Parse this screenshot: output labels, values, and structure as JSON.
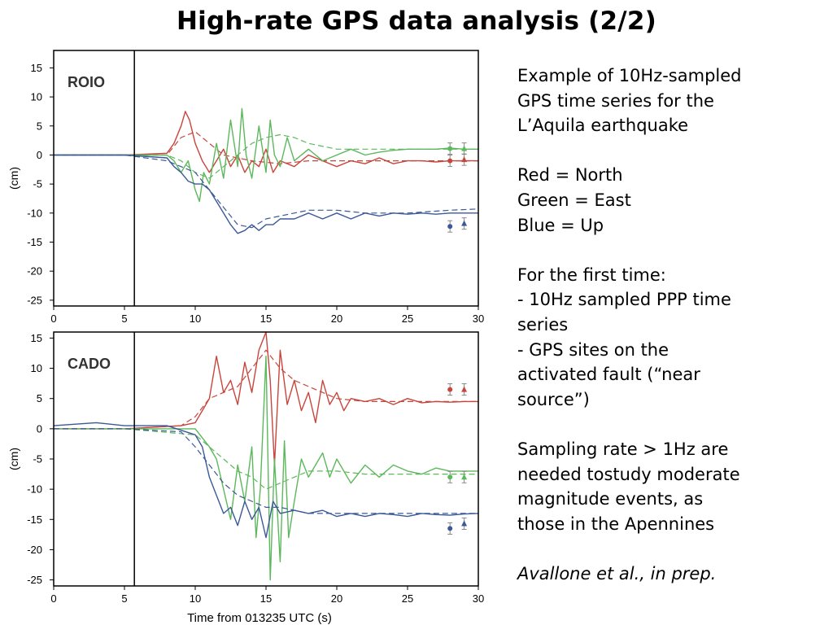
{
  "slide": {
    "title": "High-rate GPS data analysis (2/2)",
    "intro": [
      "Example of 10Hz-sampled",
      "GPS time series for the",
      "L’Aquila earthquake"
    ],
    "legend_lines": [
      "Red = North",
      "Green = East",
      "Blue = Up"
    ],
    "first_time": [
      "For the first time:",
      "- 10Hz sampled PPP time",
      "series",
      "- GPS sites on the",
      "activated fault (“near",
      "source”)"
    ],
    "sampling": [
      "Sampling rate > 1Hz are",
      "needed tostudy moderate",
      "magnitude events, as",
      "those in the Apennines"
    ],
    "citation": "Avallone et al., in prep."
  },
  "colors": {
    "north": "#c8453c",
    "east": "#5cb85c",
    "up": "#3b5998",
    "axis": "#000000"
  },
  "chart_data": [
    {
      "type": "line",
      "station": "ROIO",
      "xlabel": "",
      "ylabel": "(cm)",
      "xlim": [
        0,
        30
      ],
      "ylim": [
        -26,
        18
      ],
      "xticks": [
        0,
        5,
        10,
        15,
        20,
        25,
        30
      ],
      "yticks": [
        -25,
        -20,
        -15,
        -10,
        -5,
        0,
        5,
        10,
        15
      ],
      "vline_x": 5.7,
      "grid": false,
      "series": [
        {
          "component": "north",
          "style": "solid",
          "x": [
            0,
            5,
            8,
            8.5,
            9,
            9.3,
            9.6,
            10,
            10.5,
            11,
            11.5,
            12,
            12.5,
            13,
            13.5,
            14,
            14.5,
            15,
            15.5,
            16,
            17,
            18,
            19,
            20,
            21,
            22,
            23,
            24,
            25,
            26,
            27,
            28,
            29,
            30
          ],
          "y": [
            0,
            0,
            0.3,
            2,
            5,
            7.5,
            6,
            2,
            -1,
            -3,
            -1,
            1,
            -2,
            0,
            -3,
            -1,
            -2,
            1,
            -3,
            -1,
            -2,
            0,
            -1,
            -2,
            -1,
            -1.5,
            -0.5,
            -1.5,
            -1,
            -1,
            -1.2,
            -1,
            -1,
            -1
          ]
        },
        {
          "component": "north",
          "style": "dashed",
          "x": [
            0,
            5,
            8,
            9,
            10,
            11,
            12,
            14,
            16,
            18,
            20,
            25,
            30
          ],
          "y": [
            0,
            0,
            0,
            3,
            4,
            2,
            0,
            -1,
            -1.5,
            -1,
            -1,
            -1,
            -1
          ]
        },
        {
          "component": "east",
          "style": "solid",
          "x": [
            0,
            5,
            8,
            8.5,
            9,
            9.5,
            10,
            10.3,
            10.6,
            11,
            11.5,
            12,
            12.5,
            13,
            13.3,
            13.6,
            14,
            14.5,
            15,
            15.3,
            15.6,
            16,
            16.5,
            17,
            18,
            19,
            20,
            21,
            22,
            23,
            24,
            25,
            26,
            27,
            28,
            29,
            30
          ],
          "y": [
            0,
            0,
            0,
            -1,
            -3,
            -1,
            -6,
            -8,
            -3,
            -5,
            2,
            -4,
            6,
            -2,
            8,
            0,
            -4,
            5,
            -3,
            6,
            0,
            -2,
            3,
            -1,
            1,
            -1,
            0,
            1,
            0,
            0.5,
            0.8,
            1,
            1,
            1,
            1.2,
            1,
            1
          ]
        },
        {
          "component": "east",
          "style": "dashed",
          "x": [
            0,
            5,
            8,
            9,
            10,
            11,
            12,
            13,
            14,
            15,
            16,
            17,
            18,
            20,
            22,
            25,
            30
          ],
          "y": [
            0,
            0,
            0,
            -1,
            -3,
            -4,
            -2,
            0,
            2,
            3,
            3.5,
            3,
            2,
            1,
            1,
            1,
            1
          ]
        },
        {
          "component": "up",
          "style": "solid",
          "x": [
            0,
            5,
            8,
            8.5,
            9,
            9.5,
            10,
            10.5,
            11,
            11.5,
            12,
            12.5,
            13,
            13.5,
            14,
            14.5,
            15,
            15.5,
            16,
            17,
            18,
            19,
            20,
            21,
            22,
            23,
            24,
            25,
            26,
            27,
            28,
            29,
            30
          ],
          "y": [
            0,
            0,
            -0.5,
            -2,
            -3,
            -4.5,
            -5,
            -5,
            -6,
            -8,
            -10,
            -12,
            -13.5,
            -13,
            -12,
            -13,
            -12,
            -12,
            -11,
            -11,
            -10,
            -11,
            -10,
            -11,
            -10,
            -10.5,
            -10,
            -10.2,
            -10,
            -10.2,
            -10,
            -10,
            -10
          ]
        },
        {
          "component": "up",
          "style": "dashed",
          "x": [
            0,
            5,
            8,
            10,
            11,
            12,
            13,
            14,
            15,
            16,
            17,
            18,
            20,
            22,
            25,
            28,
            30
          ],
          "y": [
            0,
            0,
            -1,
            -3,
            -6,
            -9,
            -12,
            -12.5,
            -11,
            -10.5,
            -10,
            -9.5,
            -9.5,
            -10,
            -10,
            -9.5,
            -9.3
          ]
        }
      ],
      "error_markers": [
        {
          "component": "north",
          "x": 28,
          "y": -1,
          "marker": "circle"
        },
        {
          "component": "north",
          "x": 29,
          "y": -0.8,
          "marker": "triangle"
        },
        {
          "component": "east",
          "x": 28,
          "y": 1.1,
          "marker": "circle"
        },
        {
          "component": "east",
          "x": 29,
          "y": 1.1,
          "marker": "triangle"
        },
        {
          "component": "up",
          "x": 28,
          "y": -12.3,
          "marker": "circle"
        },
        {
          "component": "up",
          "x": 29,
          "y": -11.8,
          "marker": "triangle"
        }
      ]
    },
    {
      "type": "line",
      "station": "CADO",
      "xlabel": "Time from 013235 UTC (s)",
      "ylabel": "(cm)",
      "xlim": [
        0,
        30
      ],
      "ylim": [
        -26,
        16
      ],
      "xticks": [
        0,
        5,
        10,
        15,
        20,
        25,
        30
      ],
      "yticks": [
        -25,
        -20,
        -15,
        -10,
        -5,
        0,
        5,
        10,
        15
      ],
      "vline_x": 5.7,
      "grid": false,
      "series": [
        {
          "component": "north",
          "style": "solid",
          "x": [
            0,
            5,
            9,
            10,
            10.5,
            11,
            11.5,
            12,
            12.5,
            13,
            13.5,
            14,
            14.5,
            15,
            15.3,
            15.6,
            16,
            16.5,
            17,
            17.5,
            18,
            18.5,
            19,
            19.5,
            20,
            20.5,
            21,
            22,
            23,
            24,
            25,
            26,
            27,
            28,
            29,
            30
          ],
          "y": [
            0,
            0,
            0.5,
            1,
            3,
            5,
            12,
            6,
            8,
            4,
            11,
            6,
            13,
            16,
            8,
            -6,
            13,
            4,
            8,
            3,
            6,
            1,
            8,
            4,
            6,
            3,
            5,
            4.5,
            5,
            4,
            5,
            4.3,
            4.5,
            4.4,
            4.5,
            4.5
          ]
        },
        {
          "component": "north",
          "style": "dashed",
          "x": [
            0,
            5,
            9,
            10,
            11,
            12,
            13,
            14,
            15,
            16,
            17,
            18,
            20,
            22,
            25,
            30
          ],
          "y": [
            0,
            0,
            0.5,
            2,
            5,
            6,
            7,
            10,
            13,
            10,
            8,
            7,
            5,
            4.5,
            4.5,
            4.5
          ]
        },
        {
          "component": "east",
          "style": "solid",
          "x": [
            0,
            5,
            10,
            11,
            11.5,
            12,
            12.5,
            13,
            13.5,
            14,
            14.3,
            14.6,
            15,
            15.3,
            15.6,
            16,
            16.3,
            16.6,
            17,
            17.5,
            18,
            18.5,
            19,
            19.5,
            20,
            21,
            22,
            23,
            24,
            25,
            26,
            27,
            28,
            29,
            30
          ],
          "y": [
            0,
            0,
            0,
            -3,
            -5,
            -10,
            -15,
            -6,
            -12,
            -3,
            -18,
            -10,
            12,
            -25,
            -5,
            -22,
            -2,
            -18,
            -12,
            -5,
            -8,
            -6,
            -4,
            -8,
            -5,
            -9,
            -6,
            -8,
            -6,
            -7,
            -7.5,
            -6.5,
            -7,
            -7,
            -7
          ]
        },
        {
          "component": "east",
          "style": "dashed",
          "x": [
            0,
            5,
            10,
            11,
            12,
            13,
            14,
            15,
            16,
            17,
            18,
            20,
            22,
            25,
            30
          ],
          "y": [
            0,
            0,
            -1,
            -3,
            -5,
            -7,
            -8,
            -10,
            -9,
            -8,
            -7,
            -7,
            -7.5,
            -7.5,
            -7.5
          ]
        },
        {
          "component": "up",
          "style": "solid",
          "x": [
            0,
            3,
            5,
            8,
            10,
            10.5,
            11,
            11.5,
            12,
            12.5,
            13,
            13.5,
            14,
            14.5,
            15,
            15.5,
            16,
            17,
            18,
            19,
            20,
            21,
            22,
            23,
            24,
            25,
            26,
            27,
            28,
            29,
            30
          ],
          "y": [
            0.5,
            1,
            0.5,
            0.5,
            -1,
            -3,
            -8,
            -11,
            -14,
            -13,
            -16,
            -12,
            -15,
            -13,
            -18,
            -12,
            -14,
            -13.5,
            -14,
            -13.5,
            -14.5,
            -14,
            -14.5,
            -14,
            -14.2,
            -14.5,
            -14,
            -14.2,
            -14.3,
            -14.1,
            -14
          ]
        },
        {
          "component": "up",
          "style": "dashed",
          "x": [
            0,
            5,
            9,
            10,
            11,
            12,
            13,
            14,
            15,
            16,
            17,
            18,
            20,
            22,
            25,
            30
          ],
          "y": [
            0,
            0,
            -0.5,
            -3,
            -6,
            -9,
            -11,
            -12,
            -13,
            -13,
            -13.5,
            -14,
            -14,
            -14,
            -14,
            -14
          ]
        }
      ],
      "error_markers": [
        {
          "component": "north",
          "x": 28,
          "y": 6.5,
          "marker": "circle"
        },
        {
          "component": "north",
          "x": 29,
          "y": 6.5,
          "marker": "triangle"
        },
        {
          "component": "east",
          "x": 28,
          "y": -8,
          "marker": "circle"
        },
        {
          "component": "east",
          "x": 29,
          "y": -8,
          "marker": "triangle"
        },
        {
          "component": "up",
          "x": 28,
          "y": -16.5,
          "marker": "circle"
        },
        {
          "component": "up",
          "x": 29,
          "y": -15.7,
          "marker": "triangle"
        }
      ]
    }
  ]
}
